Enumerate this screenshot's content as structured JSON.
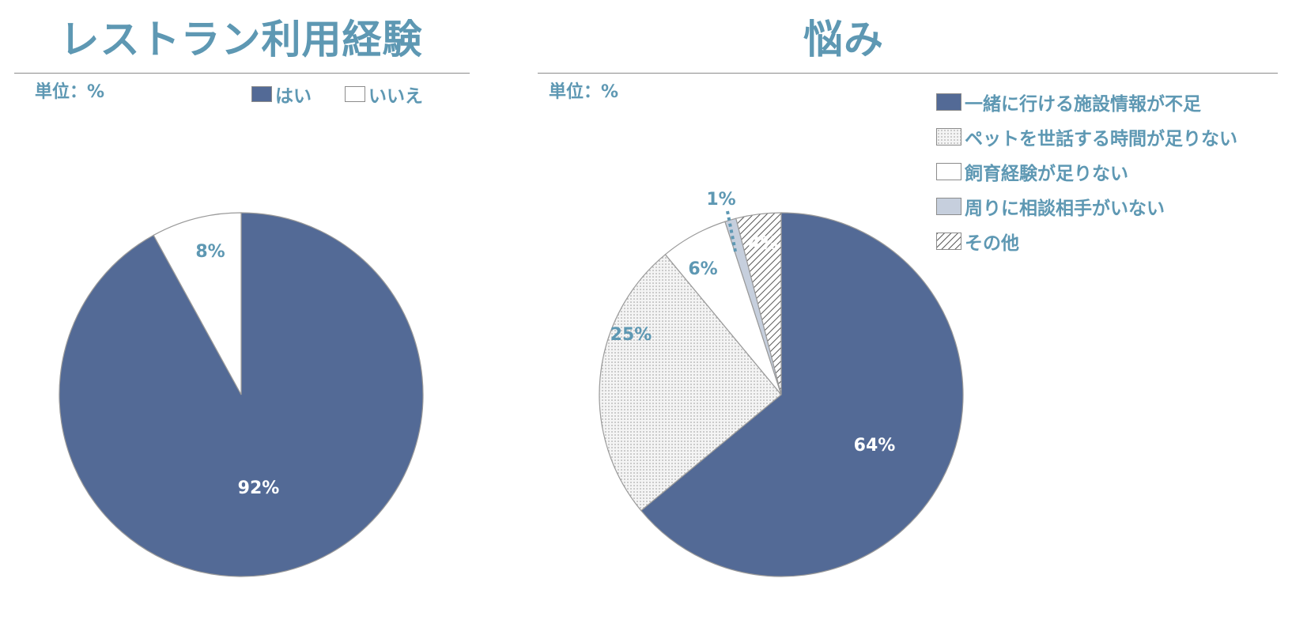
{
  "chart_data": [
    {
      "type": "pie",
      "title": "レストラン利用経験",
      "unit_label": "単位：%",
      "categories": [
        "はい",
        "いいえ"
      ],
      "values": [
        92,
        8
      ],
      "value_labels": [
        "92%",
        "8%"
      ],
      "legend": "top",
      "colors": [
        "#536a96",
        "#ffffff"
      ]
    },
    {
      "type": "pie",
      "title": "悩み",
      "unit_label": "単位：%",
      "categories": [
        "一緒に行ける施設情報が不足",
        "ペットを世話する時間が足りない",
        "飼育経験が足りない",
        "周りに相談相手がいない",
        "その他"
      ],
      "values": [
        64,
        25,
        6,
        1,
        4
      ],
      "value_labels": [
        "64%",
        "25%",
        "6%",
        "1%",
        "4%"
      ],
      "legend": "top-right",
      "colors": [
        "#536a96",
        "#f4f4f4",
        "#ffffff",
        "#c6cfdd",
        "#e4e4e4"
      ],
      "patterns": [
        "solid",
        "dots",
        "solid",
        "solid",
        "hatch"
      ]
    }
  ]
}
